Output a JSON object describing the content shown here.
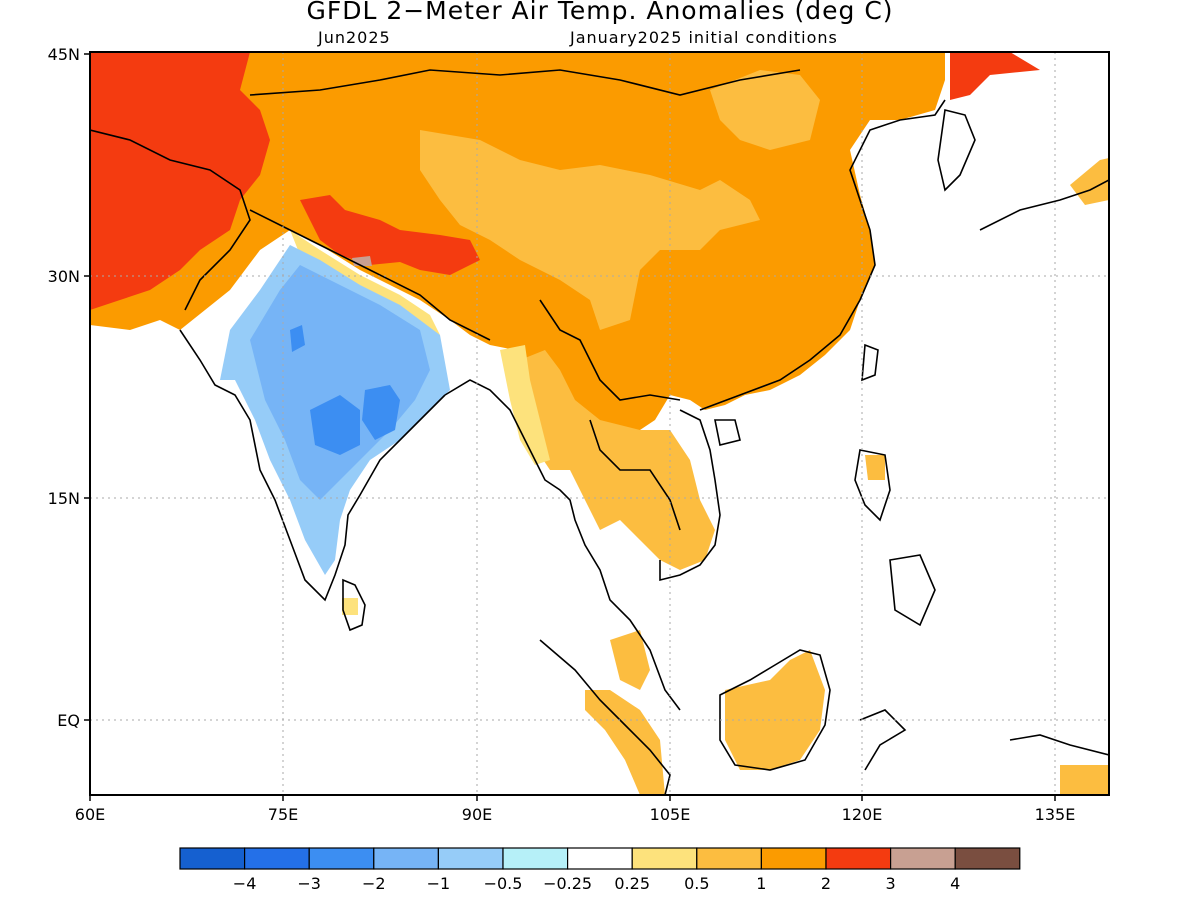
{
  "title": "GFDL 2−Meter Air Temp. Anomalies (deg C)",
  "subtitle_left": "Jun2025",
  "subtitle_right": "January2025 initial conditions",
  "lat_labels": [
    "45N",
    "30N",
    "15N",
    "EQ"
  ],
  "lon_labels": [
    "60E",
    "75E",
    "90E",
    "105E",
    "120E",
    "135E"
  ],
  "colorbar": {
    "colors": [
      "#1560d0",
      "#2470e8",
      "#3c8ef2",
      "#76b4f6",
      "#96ccf8",
      "#b6f0f8",
      "#ffffff",
      "#fde27c",
      "#fcbd40",
      "#fb9b00",
      "#f43b10",
      "#c8a092",
      "#7a4e40"
    ],
    "tick_labels": [
      "−4",
      "−3",
      "−2",
      "−1",
      "−0.5",
      "−0.25",
      "0.25",
      "0.5",
      "1",
      "2",
      "3",
      "4"
    ]
  },
  "regions": [
    {
      "name": "central-asia-anomaly",
      "color": "#f43b10"
    },
    {
      "name": "china-anomaly",
      "color": "#fb9b00"
    },
    {
      "name": "plateau-light-anomaly",
      "color": "#fcbd40"
    },
    {
      "name": "india-cool-anomaly",
      "color": "#76b4f6"
    },
    {
      "name": "india-center-anomaly",
      "color": "#3c8ef2"
    },
    {
      "name": "indochina-anomaly",
      "color": "#fcbd40"
    },
    {
      "name": "borneo-anomaly",
      "color": "#fcbd40"
    },
    {
      "name": "sumatra-anomaly",
      "color": "#fcbd40"
    },
    {
      "name": "himalaya-band",
      "color": "#f43b10"
    }
  ]
}
